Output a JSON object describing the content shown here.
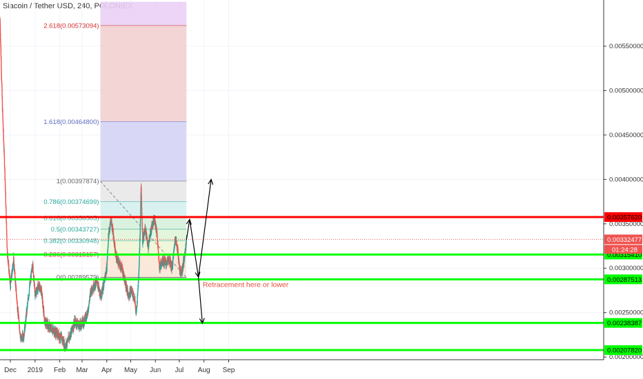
{
  "header": {
    "title": "Siacoin / Tether USD, 240, POLONIEX"
  },
  "colors": {
    "up": "#26a69a",
    "down": "#ef5350",
    "support_line": "#00ff00",
    "resistance_line": "#ff0000",
    "price_tag": "#ef5350",
    "annotation_text": "#e74c3c",
    "fib_label_red": "#d32f2f",
    "fib_label_blue": "#5c6bc0",
    "fib_label_teal": "#26a69a",
    "fib_label_grey": "#666666"
  },
  "chart_data": {
    "type": "candlestick",
    "symbol": "Siacoin / Tether USD",
    "interval": "240",
    "exchange": "POLONIEX",
    "x_ticks": [
      "Dec",
      "2019",
      "Feb",
      "Mar",
      "Apr",
      "May",
      "Jun",
      "Jul",
      "Aug",
      "Sep"
    ],
    "y_ticks": [
      "0.00200000",
      "0.00250000",
      "0.00300000",
      "0.00350000",
      "0.00400000",
      "0.00450000",
      "0.00500000",
      "0.00550000"
    ],
    "ylim": [
      0.00197,
      0.00602
    ],
    "grid": true,
    "price_path": [
      {
        "x": "Nov 18",
        "y": 0.0058
      },
      {
        "x": "Nov 21",
        "y": 0.0048
      },
      {
        "x": "Nov 24",
        "y": 0.0041
      },
      {
        "x": "Nov 27",
        "y": 0.0032
      },
      {
        "x": "Dec 1",
        "y": 0.0028
      },
      {
        "x": "Dec 5",
        "y": 0.0031
      },
      {
        "x": "Dec 10",
        "y": 0.00255
      },
      {
        "x": "Dec 14",
        "y": 0.0022
      },
      {
        "x": "Dec 18",
        "y": 0.00225
      },
      {
        "x": "Dec 22",
        "y": 0.00255
      },
      {
        "x": "Dec 26",
        "y": 0.00285
      },
      {
        "x": "Dec 29",
        "y": 0.00305
      },
      {
        "x": "Jan 1",
        "y": 0.0027
      },
      {
        "x": "Jan 5",
        "y": 0.0028
      },
      {
        "x": "Jan 9",
        "y": 0.00275
      },
      {
        "x": "Jan 13",
        "y": 0.0024
      },
      {
        "x": "Jan 18",
        "y": 0.00235
      },
      {
        "x": "Jan 24",
        "y": 0.0023
      },
      {
        "x": "Jan 30",
        "y": 0.00225
      },
      {
        "x": "Feb 4",
        "y": 0.0022
      },
      {
        "x": "Feb 8",
        "y": 0.00212
      },
      {
        "x": "Feb 14",
        "y": 0.00225
      },
      {
        "x": "Feb 20",
        "y": 0.0024
      },
      {
        "x": "Feb 26",
        "y": 0.00235
      },
      {
        "x": "Mar 3",
        "y": 0.0024
      },
      {
        "x": "Mar 8",
        "y": 0.0025
      },
      {
        "x": "Mar 12",
        "y": 0.00275
      },
      {
        "x": "Mar 16",
        "y": 0.0028
      },
      {
        "x": "Mar 20",
        "y": 0.00285
      },
      {
        "x": "Mar 24",
        "y": 0.00268
      },
      {
        "x": "Mar 28",
        "y": 0.0028
      },
      {
        "x": "Apr 1",
        "y": 0.003
      },
      {
        "x": "Apr 3",
        "y": 0.00335
      },
      {
        "x": "Apr 6",
        "y": 0.00355
      },
      {
        "x": "Apr 9",
        "y": 0.0034
      },
      {
        "x": "Apr 12",
        "y": 0.00315
      },
      {
        "x": "Apr 16",
        "y": 0.00305
      },
      {
        "x": "Apr 20",
        "y": 0.003
      },
      {
        "x": "Apr 24",
        "y": 0.00285
      },
      {
        "x": "Apr 28",
        "y": 0.0027
      },
      {
        "x": "May 2",
        "y": 0.00275
      },
      {
        "x": "May 6",
        "y": 0.00265
      },
      {
        "x": "May 8",
        "y": 0.00248
      },
      {
        "x": "May 11",
        "y": 0.0029
      },
      {
        "x": "May 13",
        "y": 0.00345
      },
      {
        "x": "May 14",
        "y": 0.00395
      },
      {
        "x": "May 16",
        "y": 0.0033
      },
      {
        "x": "May 19",
        "y": 0.00345
      },
      {
        "x": "May 23",
        "y": 0.00325
      },
      {
        "x": "May 27",
        "y": 0.00345
      },
      {
        "x": "May 31",
        "y": 0.00355
      },
      {
        "x": "Jun 3",
        "y": 0.0034
      },
      {
        "x": "Jun 6",
        "y": 0.003
      },
      {
        "x": "Jun 10",
        "y": 0.0031
      },
      {
        "x": "Jun 14",
        "y": 0.00305
      },
      {
        "x": "Jun 18",
        "y": 0.0031
      },
      {
        "x": "Jun 22",
        "y": 0.003
      },
      {
        "x": "Jun 26",
        "y": 0.00335
      },
      {
        "x": "Jun 29",
        "y": 0.0032
      },
      {
        "x": "Jul 2",
        "y": 0.00295
      },
      {
        "x": "Jul 5",
        "y": 0.003
      },
      {
        "x": "Jul 8",
        "y": 0.00315
      },
      {
        "x": "Jul 10",
        "y": 0.00332
      }
    ],
    "fibonacci": {
      "levels": [
        {
          "label": "2.618(0.00573094)",
          "value": 0.00573094,
          "zone": "#ead0f5",
          "color_key": "fib_label_red"
        },
        {
          "label": "1.618(0.00464800)",
          "value": 0.004648,
          "zone": "#f2d0d0",
          "color_key": "fib_label_blue"
        },
        {
          "label": "1(0.00397874)",
          "value": 0.00397874,
          "zone": "#d4d4f5",
          "color_key": "fib_label_grey"
        },
        {
          "label": "0.786(0.00374699)",
          "value": 0.00374699,
          "zone": "#e8e8e8",
          "color_key": "fib_label_teal"
        },
        {
          "label": "0.618(0.00356505)",
          "value": 0.00356505,
          "zone": "#d6f0f0",
          "color_key": "fib_label_teal"
        },
        {
          "label": "0.5(0.00343727)",
          "value": 0.00343727,
          "zone": "#d6f0dc",
          "color_key": "fib_label_teal"
        },
        {
          "label": "0.382(0.00330948)",
          "value": 0.00330948,
          "zone": "#e0f5d8",
          "color_key": "fib_label_teal"
        },
        {
          "label": "0.236(0.00315157)",
          "value": 0.00315157,
          "zone": "#eef5d5",
          "color_key": "fib_label_red"
        },
        {
          "label": "0(0.00289579)",
          "value": 0.00289579,
          "zone": "#fae6d6",
          "color_key": "fib_label_grey"
        }
      ],
      "zone_top": 0.006
    },
    "horizontal_lines": [
      {
        "value": 0.0035762,
        "label": "0.00357620",
        "color": "red"
      },
      {
        "value": 0.0031541,
        "label": "0.00315410",
        "color": "green"
      },
      {
        "value": 0.00287513,
        "label": "0.00287513",
        "color": "green"
      },
      {
        "value": 0.00238387,
        "label": "0.00238387",
        "color": "green"
      },
      {
        "value": 0.0020782,
        "label": "0.00207820",
        "color": "green"
      }
    ],
    "current_price": {
      "value": 0.00332477,
      "label": "0.00332477",
      "countdown": "01:24:28"
    },
    "projection": [
      {
        "x": "Jul 10",
        "y": 0.00332
      },
      {
        "x": "Jul 14",
        "y": 0.00355
      },
      {
        "x": "Jul 25",
        "y": 0.0029
      },
      {
        "x": "Aug 10",
        "y": 0.004
      },
      {
        "x": "Jul 25",
        "y": 0.0029
      },
      {
        "x": "Jul 30",
        "y": 0.00238
      }
    ],
    "annotations": [
      {
        "text": "Retracement here or lower",
        "x": "Jul 27",
        "y": 0.00285
      }
    ]
  }
}
